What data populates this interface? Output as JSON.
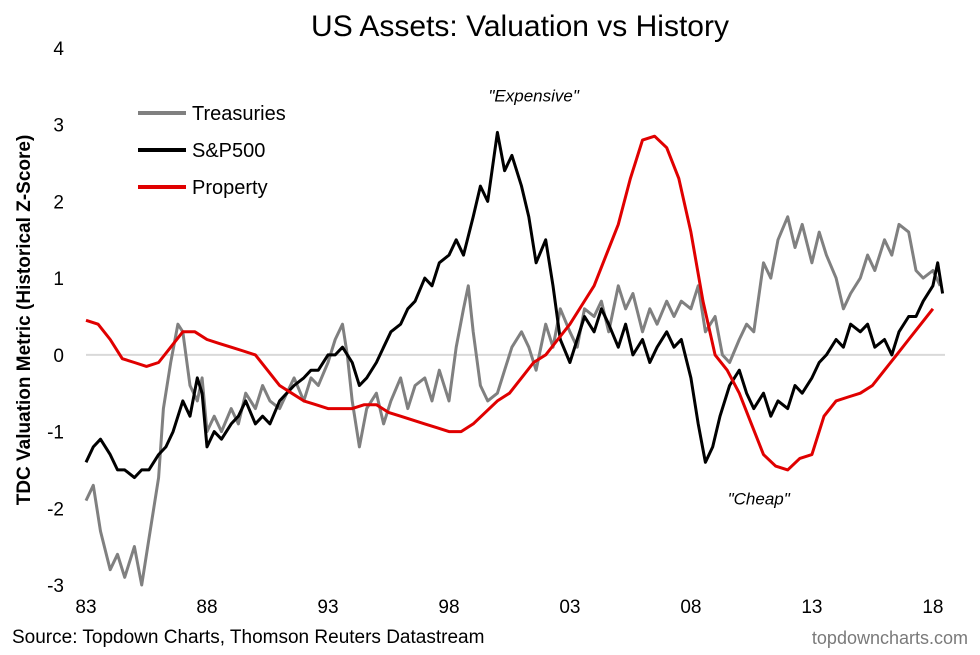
{
  "chart_data": {
    "type": "line",
    "title": "US Assets: Valuation vs History",
    "ylabel": "TDC Valuation Metric (Historical Z-Score)",
    "xlabel": "",
    "ylim": [
      -3,
      4
    ],
    "yticks": [
      "4",
      "3",
      "2",
      "1",
      "0",
      "-1",
      "-2",
      "-3"
    ],
    "ytick_values": [
      4,
      3,
      2,
      1,
      0,
      -1,
      -2,
      -3
    ],
    "xlim": [
      1983.0,
      2018.5
    ],
    "xticks": [
      "83",
      "88",
      "93",
      "98",
      "03",
      "08",
      "13",
      "18"
    ],
    "xtick_values": [
      1983,
      1988,
      1993,
      1998,
      2003,
      2008,
      2013,
      2018
    ],
    "legend_position": "top-left",
    "annotations": [
      {
        "text": "\"Expensive\"",
        "x": 2001.5,
        "y": 3.3
      },
      {
        "text": "\"Cheap\"",
        "x": 2010.8,
        "y": -1.95
      }
    ],
    "series": [
      {
        "name": "Treasuries",
        "color": "#808080",
        "x": [
          1983.0,
          1983.3,
          1983.6,
          1984.0,
          1984.3,
          1984.6,
          1985.0,
          1985.3,
          1985.6,
          1986.0,
          1986.2,
          1986.5,
          1986.8,
          1987.0,
          1987.3,
          1987.6,
          1987.8,
          1988.0,
          1988.3,
          1988.6,
          1989.0,
          1989.3,
          1989.6,
          1990.0,
          1990.3,
          1990.6,
          1991.0,
          1991.3,
          1991.6,
          1992.0,
          1992.3,
          1992.6,
          1993.0,
          1993.3,
          1993.6,
          1993.8,
          1994.0,
          1994.3,
          1994.6,
          1995.0,
          1995.3,
          1995.6,
          1996.0,
          1996.3,
          1996.6,
          1997.0,
          1997.3,
          1997.6,
          1998.0,
          1998.3,
          1998.6,
          1998.8,
          1999.0,
          1999.3,
          1999.6,
          2000.0,
          2000.3,
          2000.6,
          2001.0,
          2001.3,
          2001.6,
          2002.0,
          2002.3,
          2002.6,
          2003.0,
          2003.3,
          2003.6,
          2004.0,
          2004.3,
          2004.6,
          2005.0,
          2005.3,
          2005.6,
          2006.0,
          2006.3,
          2006.6,
          2007.0,
          2007.3,
          2007.6,
          2008.0,
          2008.3,
          2008.6,
          2009.0,
          2009.3,
          2009.6,
          2010.0,
          2010.3,
          2010.6,
          2011.0,
          2011.3,
          2011.6,
          2012.0,
          2012.3,
          2012.6,
          2013.0,
          2013.3,
          2013.6,
          2014.0,
          2014.3,
          2014.6,
          2015.0,
          2015.3,
          2015.6,
          2016.0,
          2016.3,
          2016.6,
          2017.0,
          2017.3,
          2017.6,
          2018.0,
          2018.3
        ],
        "values": [
          -1.9,
          -1.7,
          -2.3,
          -2.8,
          -2.6,
          -2.9,
          -2.5,
          -3.0,
          -2.4,
          -1.6,
          -0.7,
          -0.1,
          0.4,
          0.3,
          -0.4,
          -0.6,
          -0.3,
          -1.0,
          -0.8,
          -1.0,
          -0.7,
          -0.9,
          -0.5,
          -0.7,
          -0.4,
          -0.6,
          -0.7,
          -0.5,
          -0.3,
          -0.6,
          -0.3,
          -0.4,
          -0.1,
          0.2,
          0.4,
          0.0,
          -0.6,
          -1.2,
          -0.7,
          -0.5,
          -0.9,
          -0.6,
          -0.3,
          -0.7,
          -0.4,
          -0.3,
          -0.6,
          -0.2,
          -0.6,
          0.1,
          0.6,
          0.9,
          0.3,
          -0.4,
          -0.6,
          -0.5,
          -0.2,
          0.1,
          0.3,
          0.1,
          -0.2,
          0.4,
          0.1,
          0.6,
          0.3,
          0.1,
          0.6,
          0.5,
          0.7,
          0.3,
          0.9,
          0.6,
          0.8,
          0.3,
          0.6,
          0.4,
          0.7,
          0.5,
          0.7,
          0.6,
          0.9,
          0.3,
          0.5,
          0.0,
          -0.1,
          0.2,
          0.4,
          0.3,
          1.2,
          1.0,
          1.5,
          1.8,
          1.4,
          1.7,
          1.2,
          1.6,
          1.3,
          1.0,
          0.6,
          0.8,
          1.0,
          1.3,
          1.1,
          1.5,
          1.3,
          1.7,
          1.6,
          1.1,
          1.0,
          1.1,
          0.9
        ]
      },
      {
        "name": "S&P500",
        "color": "#000000",
        "x": [
          1983.0,
          1983.3,
          1983.6,
          1984.0,
          1984.3,
          1984.6,
          1985.0,
          1985.3,
          1985.6,
          1986.0,
          1986.3,
          1986.6,
          1987.0,
          1987.3,
          1987.6,
          1987.8,
          1988.0,
          1988.3,
          1988.6,
          1989.0,
          1989.3,
          1989.6,
          1990.0,
          1990.3,
          1990.6,
          1991.0,
          1991.3,
          1991.6,
          1992.0,
          1992.3,
          1992.6,
          1993.0,
          1993.3,
          1993.6,
          1994.0,
          1994.3,
          1994.6,
          1995.0,
          1995.3,
          1995.6,
          1996.0,
          1996.3,
          1996.6,
          1997.0,
          1997.3,
          1997.6,
          1998.0,
          1998.3,
          1998.6,
          1999.0,
          1999.3,
          1999.6,
          2000.0,
          2000.3,
          2000.6,
          2001.0,
          2001.3,
          2001.6,
          2002.0,
          2002.3,
          2002.6,
          2003.0,
          2003.3,
          2003.6,
          2004.0,
          2004.3,
          2004.6,
          2005.0,
          2005.3,
          2005.6,
          2006.0,
          2006.3,
          2006.6,
          2007.0,
          2007.3,
          2007.6,
          2008.0,
          2008.3,
          2008.6,
          2008.9,
          2009.2,
          2009.6,
          2010.0,
          2010.3,
          2010.6,
          2011.0,
          2011.3,
          2011.6,
          2012.0,
          2012.3,
          2012.6,
          2013.0,
          2013.3,
          2013.6,
          2014.0,
          2014.3,
          2014.6,
          2015.0,
          2015.3,
          2015.6,
          2016.0,
          2016.3,
          2016.6,
          2017.0,
          2017.3,
          2017.6,
          2018.0,
          2018.2,
          2018.4
        ],
        "values": [
          -1.4,
          -1.2,
          -1.1,
          -1.3,
          -1.5,
          -1.5,
          -1.6,
          -1.5,
          -1.5,
          -1.3,
          -1.2,
          -1.0,
          -0.6,
          -0.8,
          -0.3,
          -0.5,
          -1.2,
          -1.0,
          -1.1,
          -0.9,
          -0.8,
          -0.6,
          -0.9,
          -0.8,
          -0.9,
          -0.6,
          -0.5,
          -0.4,
          -0.3,
          -0.2,
          -0.2,
          0.0,
          0.0,
          0.1,
          -0.1,
          -0.4,
          -0.3,
          -0.1,
          0.1,
          0.3,
          0.4,
          0.6,
          0.7,
          1.0,
          0.9,
          1.2,
          1.3,
          1.5,
          1.3,
          1.8,
          2.2,
          2.0,
          2.9,
          2.4,
          2.6,
          2.2,
          1.8,
          1.2,
          1.5,
          0.9,
          0.2,
          -0.1,
          0.2,
          0.5,
          0.3,
          0.6,
          0.4,
          0.1,
          0.4,
          0.0,
          0.2,
          -0.1,
          0.1,
          0.3,
          0.1,
          0.2,
          -0.3,
          -0.9,
          -1.4,
          -1.2,
          -0.8,
          -0.4,
          -0.2,
          -0.5,
          -0.7,
          -0.5,
          -0.8,
          -0.6,
          -0.7,
          -0.4,
          -0.5,
          -0.3,
          -0.1,
          0.0,
          0.2,
          0.1,
          0.4,
          0.3,
          0.4,
          0.1,
          0.2,
          0.0,
          0.3,
          0.5,
          0.5,
          0.7,
          0.9,
          1.2,
          0.8
        ]
      },
      {
        "name": "Property",
        "color": "#e00000",
        "x": [
          1983.0,
          1983.5,
          1984.0,
          1984.5,
          1985.0,
          1985.5,
          1986.0,
          1986.5,
          1987.0,
          1987.5,
          1988.0,
          1988.5,
          1989.0,
          1989.5,
          1990.0,
          1990.5,
          1991.0,
          1991.5,
          1992.0,
          1992.5,
          1993.0,
          1993.5,
          1994.0,
          1994.5,
          1995.0,
          1995.5,
          1996.0,
          1996.5,
          1997.0,
          1997.5,
          1998.0,
          1998.5,
          1999.0,
          1999.5,
          2000.0,
          2000.5,
          2001.0,
          2001.5,
          2002.0,
          2002.5,
          2003.0,
          2003.5,
          2004.0,
          2004.5,
          2005.0,
          2005.5,
          2006.0,
          2006.5,
          2007.0,
          2007.5,
          2008.0,
          2008.5,
          2009.0,
          2009.5,
          2010.0,
          2010.5,
          2011.0,
          2011.5,
          2012.0,
          2012.5,
          2013.0,
          2013.5,
          2014.0,
          2014.5,
          2015.0,
          2015.5,
          2016.0,
          2016.5,
          2017.0,
          2017.5,
          2018.0
        ],
        "values": [
          0.45,
          0.4,
          0.2,
          -0.05,
          -0.1,
          -0.15,
          -0.1,
          0.1,
          0.3,
          0.3,
          0.2,
          0.15,
          0.1,
          0.05,
          0.0,
          -0.2,
          -0.4,
          -0.5,
          -0.6,
          -0.65,
          -0.7,
          -0.7,
          -0.7,
          -0.65,
          -0.65,
          -0.75,
          -0.8,
          -0.85,
          -0.9,
          -0.95,
          -1.0,
          -1.0,
          -0.9,
          -0.75,
          -0.6,
          -0.5,
          -0.3,
          -0.1,
          0.0,
          0.2,
          0.4,
          0.65,
          0.9,
          1.3,
          1.7,
          2.3,
          2.8,
          2.85,
          2.7,
          2.3,
          1.6,
          0.7,
          0.0,
          -0.2,
          -0.5,
          -0.9,
          -1.3,
          -1.45,
          -1.5,
          -1.35,
          -1.3,
          -0.8,
          -0.6,
          -0.55,
          -0.5,
          -0.4,
          -0.2,
          0.0,
          0.2,
          0.4,
          0.6
        ]
      }
    ]
  },
  "footer": {
    "source": "Source: Topdown Charts, Thomson Reuters Datastream",
    "brand": "topdowncharts.com"
  }
}
